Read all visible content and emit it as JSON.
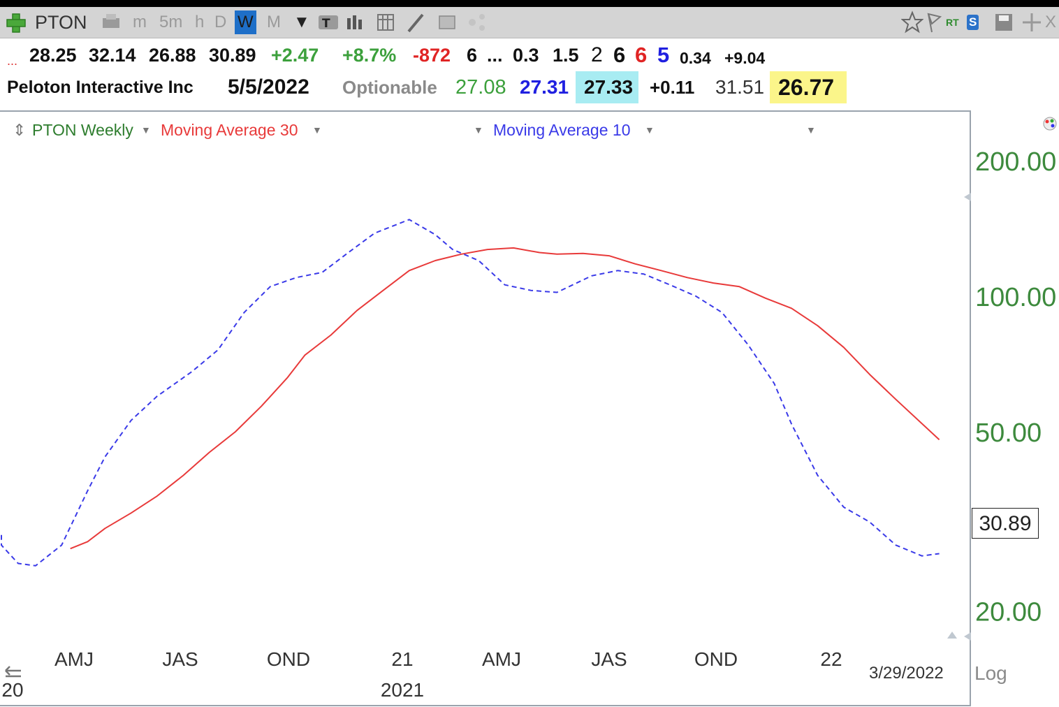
{
  "toolbar": {
    "symbol": "PTON",
    "timeframes": [
      "m",
      "5m",
      "h",
      "D",
      "W",
      "M"
    ],
    "active_timeframe": "W",
    "right_labels": {
      "rt": "RT",
      "s": "S",
      "close": "X"
    }
  },
  "quote_line1": {
    "ellipsis": "...",
    "open": "28.25",
    "high": "32.14",
    "low": "26.88",
    "close": "30.89",
    "change": "+2.47",
    "change_pct": "+8.7%",
    "vol_change": "-872",
    "v1": "6",
    "dots": "...",
    "v2": "0.3",
    "v3": "1.5",
    "v4": "2",
    "v5": "6",
    "v6": "6",
    "v7": "5",
    "v8": "0.34",
    "v9": "+9.04"
  },
  "quote_line2": {
    "company": "Peloton Interactive Inc",
    "date": "5/5/2022",
    "optionable": "Optionable",
    "last": "27.08",
    "bid": "27.31",
    "ask": "27.33",
    "ask_change": "+0.11",
    "prev": "31.51",
    "highlight_price": "26.77"
  },
  "legend": {
    "symbol_label": "PTON Weekly",
    "ma30_label": "Moving Average 30",
    "ma10_label": "Moving Average 10"
  },
  "colors": {
    "ma30": "#e83a3a",
    "ma10": "#3a3ae8",
    "axis_text": "#3d8a3d",
    "symbol_text": "#2e7d2e"
  },
  "chart_data": {
    "type": "line",
    "title": "PTON Weekly",
    "y_scale": "log",
    "ylim": [
      14,
      240
    ],
    "y_ticks": [
      200,
      100,
      50,
      20
    ],
    "y_tick_labels": [
      "200.00",
      "100.00",
      "50.00",
      "20.00"
    ],
    "x_tick_labels": [
      "AMJ",
      "JAS",
      "OND",
      "21",
      "AMJ",
      "JAS",
      "OND",
      "22"
    ],
    "x_year_labels": [
      "20",
      "2021"
    ],
    "last_price_label": "30.89",
    "date_label": "3/29/2022",
    "scale_label": "Log",
    "series": [
      {
        "name": "Moving Average 30",
        "x": [
          "2020-04-28",
          "2020-05-12",
          "2020-05-26",
          "2020-06-16",
          "2020-07-07",
          "2020-07-28",
          "2020-08-18",
          "2020-09-08",
          "2020-09-29",
          "2020-10-20",
          "2020-11-03",
          "2020-11-24",
          "2020-12-15",
          "2021-01-05",
          "2021-01-26",
          "2021-02-16",
          "2021-03-09",
          "2021-03-30",
          "2021-04-20",
          "2021-05-11",
          "2021-05-25",
          "2021-06-15",
          "2021-07-06",
          "2021-07-27",
          "2021-08-17",
          "2021-09-07",
          "2021-09-28",
          "2021-10-19",
          "2021-11-09",
          "2021-11-30",
          "2021-12-21",
          "2022-01-11",
          "2022-02-01",
          "2022-02-22",
          "2022-03-29"
        ],
        "values": [
          27.5,
          28.5,
          30.5,
          33,
          36,
          40,
          45,
          50,
          57,
          66,
          74,
          82,
          93,
          103,
          114,
          120,
          124,
          127,
          128,
          125,
          124,
          124.5,
          123,
          118,
          114,
          110,
          107,
          105,
          99,
          94,
          86,
          77,
          67,
          59,
          48
        ]
      },
      {
        "name": "Moving Average 10",
        "x": [
          "2020-01-28",
          "2020-02-25",
          "2020-03-17",
          "2020-03-31",
          "2020-04-21",
          "2020-05-12",
          "2020-05-26",
          "2020-06-16",
          "2020-07-07",
          "2020-08-04",
          "2020-08-25",
          "2020-09-15",
          "2020-10-06",
          "2020-10-27",
          "2020-11-17",
          "2020-12-08",
          "2020-12-29",
          "2021-01-26",
          "2021-02-16",
          "2021-03-02",
          "2021-03-23",
          "2021-04-13",
          "2021-05-04",
          "2021-05-25",
          "2021-06-22",
          "2021-07-13",
          "2021-08-03",
          "2021-08-24",
          "2021-09-14",
          "2021-10-05",
          "2021-10-26",
          "2021-11-16",
          "2021-11-30",
          "2021-12-21",
          "2022-01-11",
          "2022-02-01",
          "2022-02-22",
          "2022-03-15",
          "2022-03-29"
        ],
        "values": [
          29.5,
          28,
          25.5,
          25.2,
          28,
          37,
          44,
          53,
          60,
          68,
          76,
          92,
          105,
          110,
          113,
          125,
          138,
          148,
          137,
          127,
          120,
          106,
          103,
          102,
          111,
          114,
          112,
          106,
          100,
          92,
          78,
          64,
          52,
          40,
          34,
          31.5,
          28,
          26.5,
          26.8
        ]
      }
    ]
  }
}
